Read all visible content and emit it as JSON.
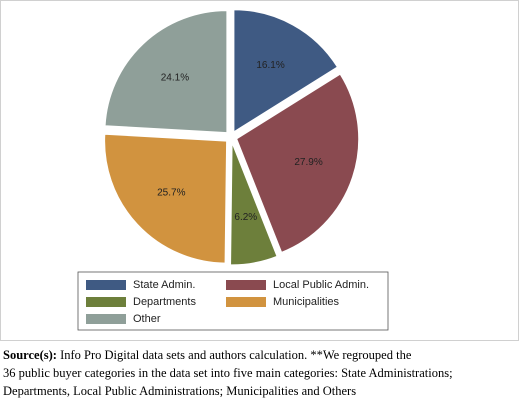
{
  "chart_data": {
    "type": "pie",
    "categories": [
      "State Admin.",
      "Local Public Admin.",
      "Departments",
      "Municipalities",
      "Other"
    ],
    "values": [
      16.1,
      27.9,
      6.2,
      25.7,
      24.1
    ],
    "value_labels": [
      "16.1%",
      "27.9%",
      "6.2%",
      "25.7%",
      "24.1%"
    ],
    "colors": [
      "#3f5a83",
      "#8a4a50",
      "#6d7f3b",
      "#d1933f",
      "#8f9f99"
    ],
    "legend": "bottom"
  },
  "caption": {
    "label": "Source(s):",
    "lines": [
      "Info Pro Digital data sets and authors calculation. **We regrouped the",
      "36 public buyer categories in the data set into five main categories: State Administrations;",
      "Departments, Local Public Administrations; Municipalities and Others"
    ]
  }
}
